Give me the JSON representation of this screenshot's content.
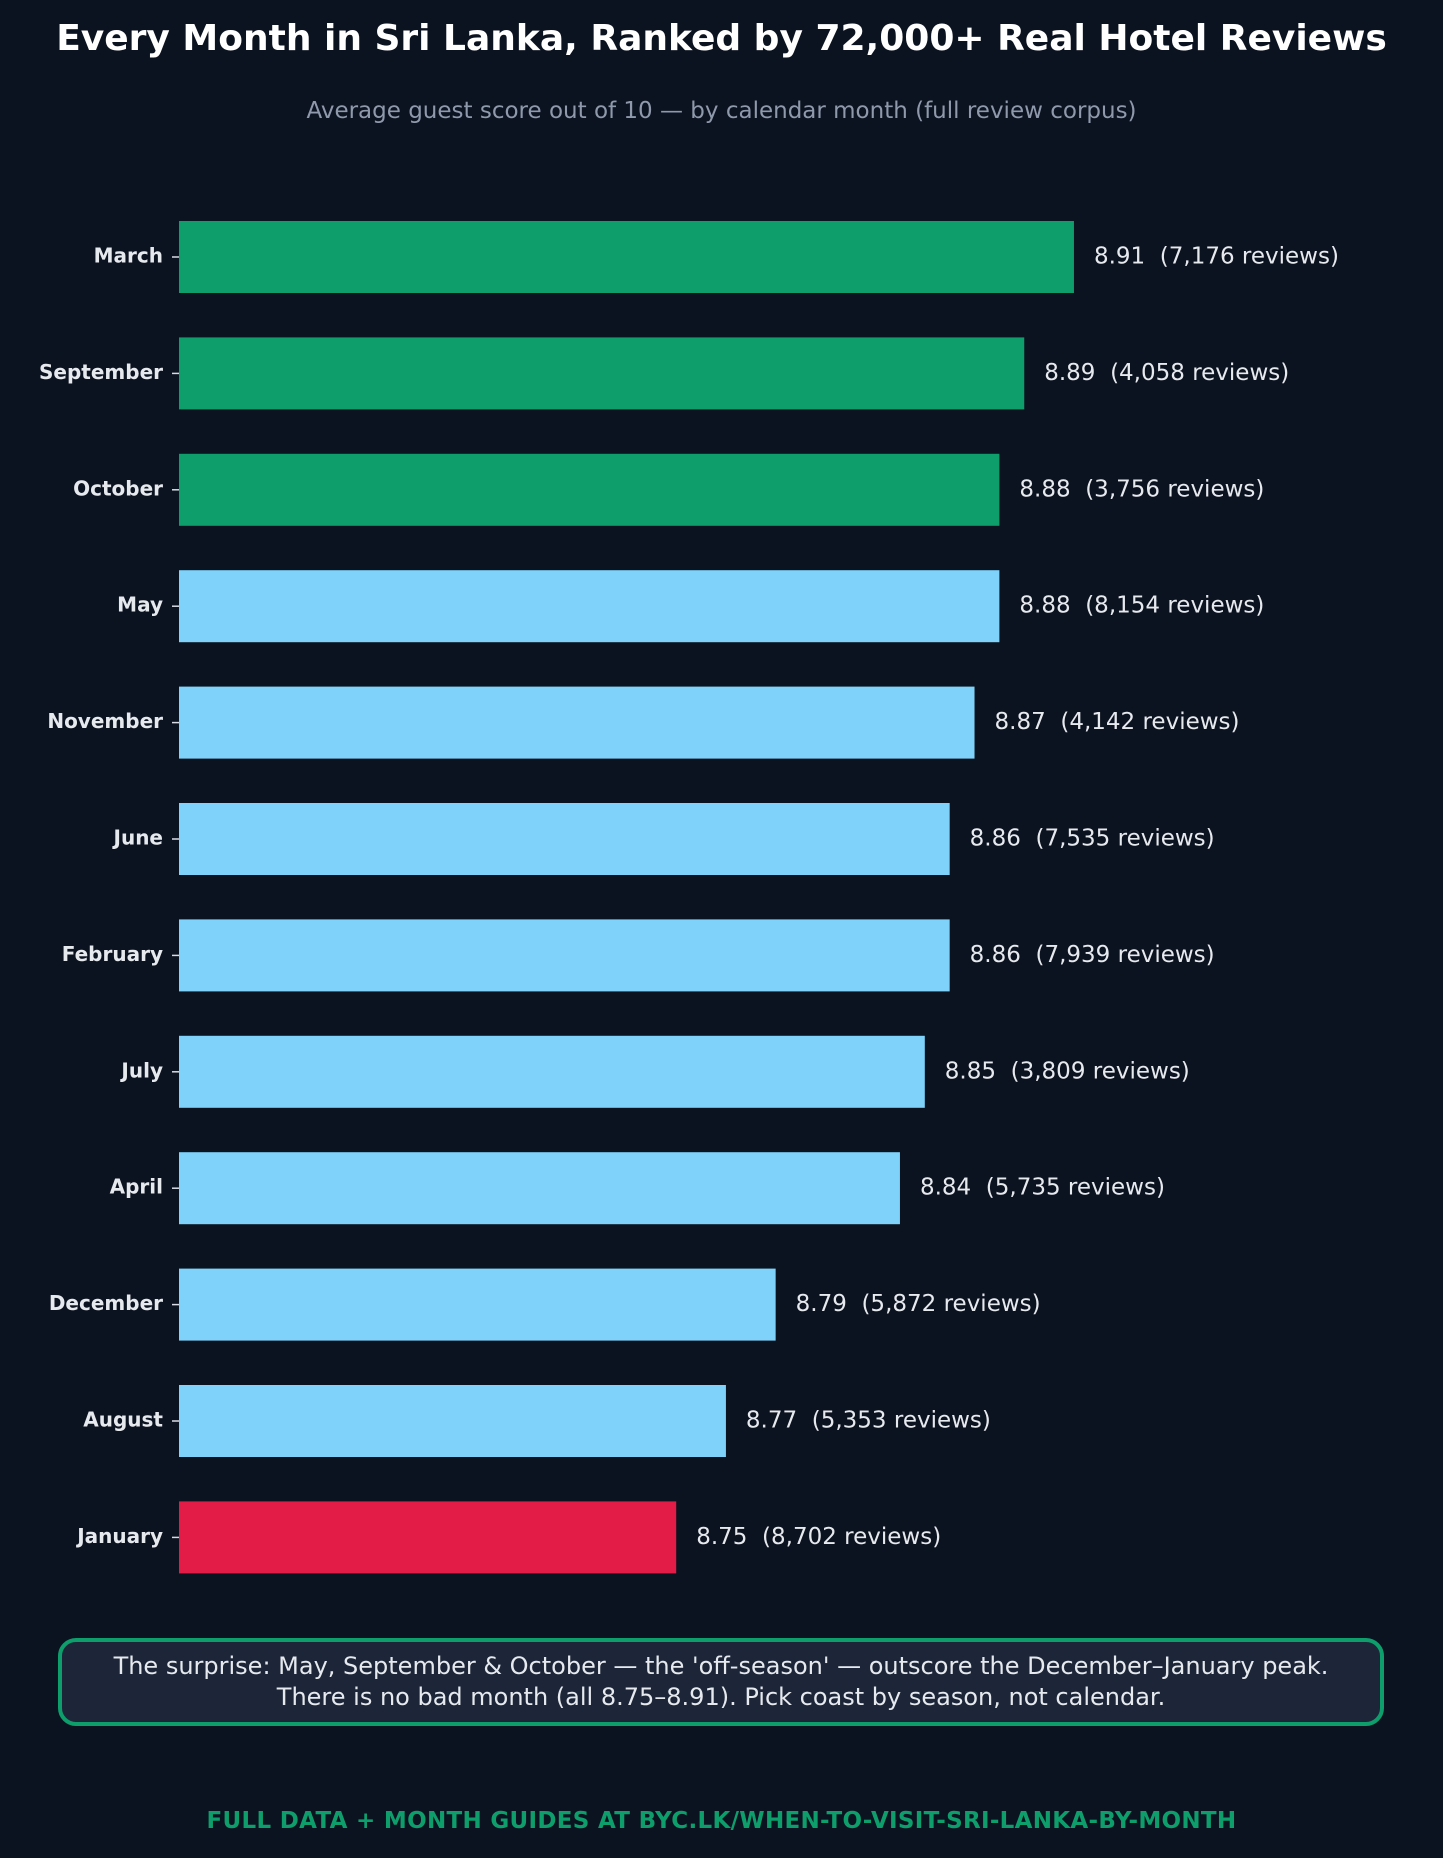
{
  "title": "Every Month in Sri Lanka, Ranked by 72,000+ Real Hotel Reviews",
  "subtitle": "Average guest score out of 10 — by calendar month (full review corpus)",
  "note": {
    "line1": "The surprise: May, September & October — the 'off-season' — outscore the December–January peak.",
    "line2": "There is no bad month (all 8.75–8.91). Pick coast by season, not calendar."
  },
  "footer": "FULL DATA + MONTH GUIDES AT BYC.LK/WHEN-TO-VISIT-SRI-LANKA-BY-MONTH",
  "colors": {
    "background": "#0c1320",
    "top": "#0e9e6c",
    "middle": "#7fd3fb",
    "bottom": "#e31b47",
    "label_text": "#e6e9ee",
    "accent": "#0e9e6c"
  },
  "chart_data": {
    "type": "bar",
    "orientation": "horizontal",
    "categories": [
      "March",
      "September",
      "October",
      "May",
      "November",
      "June",
      "February",
      "July",
      "April",
      "December",
      "August",
      "January"
    ],
    "values": [
      8.91,
      8.89,
      8.88,
      8.88,
      8.87,
      8.86,
      8.86,
      8.85,
      8.84,
      8.79,
      8.77,
      8.75
    ],
    "reviews": [
      7176,
      4058,
      3756,
      8154,
      4142,
      7535,
      7939,
      3809,
      5735,
      5872,
      5353,
      8702
    ],
    "data_labels": [
      "8.91  (7,176 reviews)",
      "8.89  (4,058 reviews)",
      "8.88  (3,756 reviews)",
      "8.88  (8,154 reviews)",
      "8.87  (4,142 reviews)",
      "8.86  (7,535 reviews)",
      "8.86  (7,939 reviews)",
      "8.85  (3,809 reviews)",
      "8.84  (5,735 reviews)",
      "8.79  (5,872 reviews)",
      "8.77  (5,353 reviews)",
      "8.75  (8,702 reviews)"
    ],
    "highlight": [
      "top",
      "top",
      "top",
      "middle",
      "middle",
      "middle",
      "middle",
      "middle",
      "middle",
      "middle",
      "middle",
      "bottom"
    ],
    "xlim": [
      8.55,
      8.91
    ],
    "grid": false,
    "legend": "none",
    "x_axis_visible": false
  }
}
